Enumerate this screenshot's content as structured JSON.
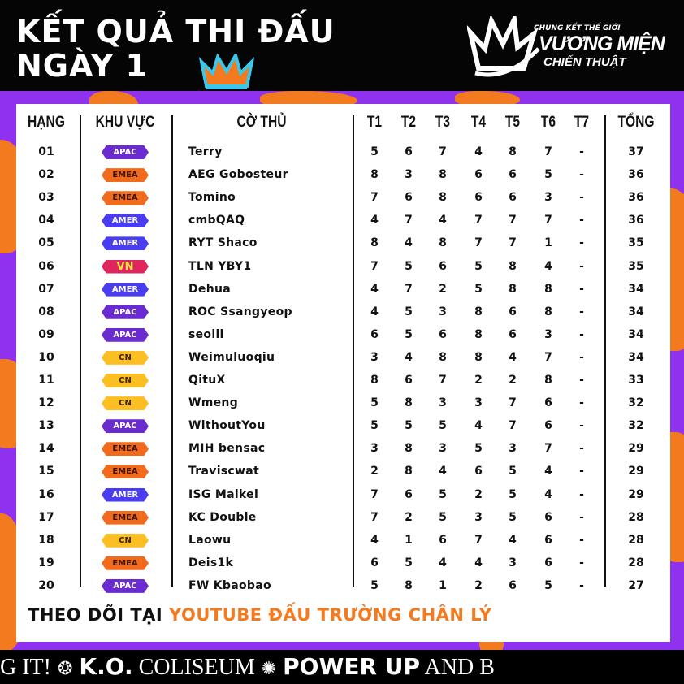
{
  "header": {
    "title_line1": "KẾT QUẢ THI ĐẤU",
    "title_line2": "NGÀY 1"
  },
  "logo": {
    "line1": "CHUNG KẾT THẾ GIỚI",
    "line2": "VƯƠNG MIỆN",
    "line3": "CHIẾN THUẬT"
  },
  "table": {
    "columns": {
      "rank": "HẠNG",
      "region": "KHU VỰC",
      "player": "CỜ THỦ",
      "rounds": [
        "T1",
        "T2",
        "T3",
        "T4",
        "T5",
        "T6",
        "T7"
      ],
      "total": "TỔNG"
    },
    "region_colors": {
      "APAC": {
        "bg": "#6a2bd0",
        "fg": "#ffffff"
      },
      "EMEA": {
        "bg": "#f26a1b",
        "fg": "#3a1200"
      },
      "AMER": {
        "bg": "#4a3cf0",
        "fg": "#ffffff"
      },
      "VN": {
        "bg": "#e0245e",
        "fg": "#ffe14a"
      },
      "CN": {
        "bg": "#fbbf24",
        "fg": "#3a2200"
      }
    },
    "rows": [
      {
        "rank": "01",
        "region": "APAC",
        "player": "Terry",
        "scores": [
          "5",
          "6",
          "7",
          "4",
          "8",
          "7",
          "-"
        ],
        "total": "37"
      },
      {
        "rank": "02",
        "region": "EMEA",
        "player": "AEG Gobosteur",
        "scores": [
          "8",
          "3",
          "8",
          "6",
          "6",
          "5",
          "-"
        ],
        "total": "36"
      },
      {
        "rank": "03",
        "region": "EMEA",
        "player": "Tomino",
        "scores": [
          "7",
          "6",
          "8",
          "6",
          "6",
          "3",
          "-"
        ],
        "total": "36"
      },
      {
        "rank": "04",
        "region": "AMER",
        "player": "cmbQAQ",
        "scores": [
          "4",
          "7",
          "4",
          "7",
          "7",
          "7",
          "-"
        ],
        "total": "36"
      },
      {
        "rank": "05",
        "region": "AMER",
        "player": "RYT Shaco",
        "scores": [
          "8",
          "4",
          "8",
          "7",
          "7",
          "1",
          "-"
        ],
        "total": "35"
      },
      {
        "rank": "06",
        "region": "VN",
        "player": "TLN YBY1",
        "scores": [
          "7",
          "5",
          "6",
          "5",
          "8",
          "4",
          "-"
        ],
        "total": "35"
      },
      {
        "rank": "07",
        "region": "AMER",
        "player": "Dehua",
        "scores": [
          "4",
          "7",
          "2",
          "5",
          "8",
          "8",
          "-"
        ],
        "total": "34"
      },
      {
        "rank": "08",
        "region": "APAC",
        "player": "ROC Ssangyeop",
        "scores": [
          "4",
          "5",
          "3",
          "8",
          "6",
          "8",
          "-"
        ],
        "total": "34"
      },
      {
        "rank": "09",
        "region": "APAC",
        "player": "seoill",
        "scores": [
          "6",
          "5",
          "6",
          "8",
          "6",
          "3",
          "-"
        ],
        "total": "34"
      },
      {
        "rank": "10",
        "region": "CN",
        "player": "Weimuluoqiu",
        "scores": [
          "3",
          "4",
          "8",
          "8",
          "4",
          "7",
          "-"
        ],
        "total": "34"
      },
      {
        "rank": "11",
        "region": "CN",
        "player": "QituX",
        "scores": [
          "8",
          "6",
          "7",
          "2",
          "2",
          "8",
          "-"
        ],
        "total": "33"
      },
      {
        "rank": "12",
        "region": "CN",
        "player": "Wmeng",
        "scores": [
          "5",
          "8",
          "3",
          "3",
          "7",
          "6",
          "-"
        ],
        "total": "32"
      },
      {
        "rank": "13",
        "region": "APAC",
        "player": "WithoutYou",
        "scores": [
          "5",
          "5",
          "5",
          "4",
          "7",
          "6",
          "-"
        ],
        "total": "32"
      },
      {
        "rank": "14",
        "region": "EMEA",
        "player": "MIH bensac",
        "scores": [
          "3",
          "8",
          "3",
          "5",
          "3",
          "7",
          "-"
        ],
        "total": "29"
      },
      {
        "rank": "15",
        "region": "EMEA",
        "player": "Traviscwat",
        "scores": [
          "2",
          "8",
          "4",
          "6",
          "5",
          "4",
          "-"
        ],
        "total": "29"
      },
      {
        "rank": "16",
        "region": "AMER",
        "player": "ISG Maikel",
        "scores": [
          "7",
          "6",
          "5",
          "2",
          "5",
          "4",
          "-"
        ],
        "total": "29"
      },
      {
        "rank": "17",
        "region": "EMEA",
        "player": "KC Double",
        "scores": [
          "7",
          "2",
          "5",
          "3",
          "5",
          "6",
          "-"
        ],
        "total": "28"
      },
      {
        "rank": "18",
        "region": "CN",
        "player": "Laowu",
        "scores": [
          "4",
          "1",
          "6",
          "7",
          "4",
          "6",
          "-"
        ],
        "total": "28"
      },
      {
        "rank": "19",
        "region": "EMEA",
        "player": "Deis1k",
        "scores": [
          "6",
          "5",
          "4",
          "4",
          "3",
          "6",
          "-"
        ],
        "total": "28"
      },
      {
        "rank": "20",
        "region": "APAC",
        "player": "FW Kbaobao",
        "scores": [
          "5",
          "8",
          "1",
          "2",
          "6",
          "5",
          "-"
        ],
        "total": "27"
      }
    ]
  },
  "footer": {
    "prefix": "THEO DÕI TẠI",
    "highlight": "YOUTUBE ĐẤU TRƯỜNG CHÂN LÝ"
  },
  "ticker": {
    "items": [
      "G IT!",
      "K.O.",
      "COLISEUM",
      "POWER UP",
      "AND B"
    ]
  }
}
